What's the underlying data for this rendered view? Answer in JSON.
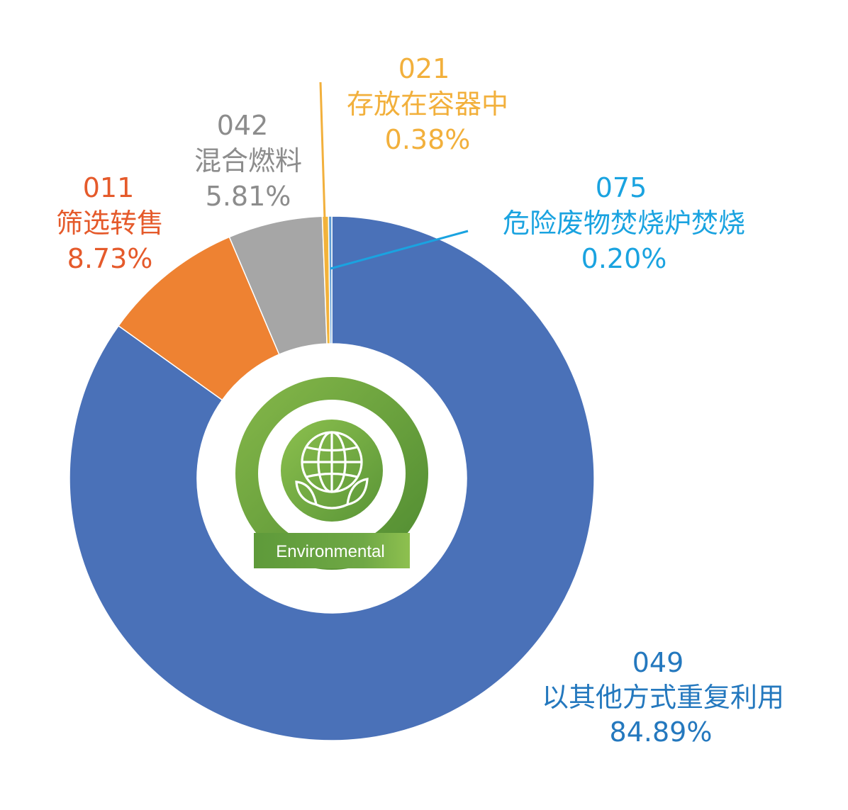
{
  "chart_data": {
    "type": "pie",
    "donut": true,
    "slices": [
      {
        "code": "049",
        "label": "以其他方式重复利用",
        "value": 84.89,
        "display": "84.89%",
        "color": "#4A71B8",
        "label_color": "#2478BE"
      },
      {
        "code": "011",
        "label": "筛选转售",
        "value": 8.73,
        "display": "8.73%",
        "color": "#EE8232",
        "label_color": "#E55A2B"
      },
      {
        "code": "042",
        "label": "混合燃料",
        "value": 5.81,
        "display": "5.81%",
        "color": "#A6A6A6",
        "label_color": "#8C8C8C"
      },
      {
        "code": "021",
        "label": "存放在容器中",
        "value": 0.38,
        "display": "0.38%",
        "color": "#F2B73A",
        "label_color": "#F2B03C"
      },
      {
        "code": "075",
        "label": "危险废物焚烧炉焚烧",
        "value": 0.2,
        "display": "0.20%",
        "color": "#5B9BD5",
        "label_color": "#1AA3E0"
      }
    ],
    "direction": "counterclockwise from top"
  },
  "center_logo": {
    "icon": "globe-with-leaves-icon",
    "caption": "Environmental",
    "colors": {
      "ring": "#6FA43A",
      "inner": "#7DB143",
      "dark": "#4E8A2E"
    }
  }
}
